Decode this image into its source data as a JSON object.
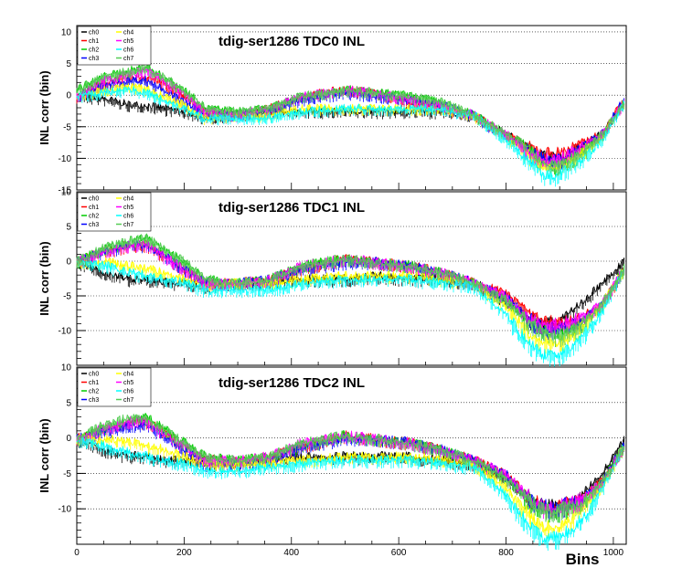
{
  "figure": {
    "xlabel": "Bins",
    "colors": {
      "ch0": "#000000",
      "ch1": "#ff0000",
      "ch2": "#00cc00",
      "ch3": "#0000ff",
      "ch4": "#ffff00",
      "ch5": "#ff00ff",
      "ch6": "#00ffff",
      "ch7": "#55cc55"
    }
  },
  "chart_data": [
    {
      "type": "line",
      "title": "tdig-ser1286 TDC0 INL",
      "ylabel": "INL corr (bin)",
      "xlim": [
        0,
        1024
      ],
      "ylim": [
        -15,
        11
      ],
      "yticks": [
        10,
        5,
        0,
        -5,
        -10,
        -15
      ],
      "xticks": [],
      "legend_position": "top-left",
      "grid": "horizontal dotted",
      "x": [
        0,
        50,
        100,
        130,
        160,
        200,
        240,
        300,
        360,
        420,
        500,
        560,
        620,
        680,
        740,
        800,
        840,
        870,
        900,
        940,
        980,
        1020
      ],
      "series": [
        {
          "name": "ch0",
          "values": [
            0,
            -0.5,
            -1.5,
            -1.5,
            -2,
            -2.5,
            -3.5,
            -3,
            -2.5,
            -2.5,
            -2.5,
            -2.5,
            -2.5,
            -2.5,
            -3,
            -6,
            -8,
            -9.5,
            -10,
            -8,
            -6,
            -1
          ]
        },
        {
          "name": "ch1",
          "values": [
            0,
            2,
            3,
            3,
            2,
            0,
            -2.5,
            -3,
            -2,
            0,
            1,
            0.5,
            -1,
            -2,
            -3,
            -6,
            -8,
            -9,
            -9,
            -7.5,
            -6,
            -0.5
          ]
        },
        {
          "name": "ch2",
          "values": [
            1,
            3,
            4,
            4.5,
            3,
            1,
            -2,
            -2.5,
            -2,
            0,
            1,
            0.5,
            0,
            -1,
            -3,
            -6,
            -8,
            -10.5,
            -11,
            -9,
            -6,
            -1
          ]
        },
        {
          "name": "ch3",
          "values": [
            0,
            1.5,
            2.5,
            2.5,
            1,
            -1,
            -3,
            -3,
            -2.5,
            -0.5,
            0.5,
            0,
            -0.5,
            -1.5,
            -3,
            -6.5,
            -8.5,
            -10,
            -10,
            -8,
            -6,
            -0.5
          ]
        },
        {
          "name": "ch4",
          "values": [
            0,
            1,
            1.5,
            1,
            0,
            -1.5,
            -3.5,
            -3,
            -3,
            -2,
            -2,
            -2,
            -2,
            -2,
            -3,
            -6.5,
            -9,
            -11,
            -11,
            -9,
            -6.5,
            -1
          ]
        },
        {
          "name": "ch5",
          "values": [
            0,
            2.5,
            3.5,
            4,
            2.5,
            0.5,
            -2.5,
            -3,
            -2,
            0,
            1,
            0.5,
            -0.5,
            -1.5,
            -3,
            -6,
            -8.5,
            -10,
            -10,
            -8,
            -6,
            -1
          ]
        },
        {
          "name": "ch6",
          "values": [
            0,
            0.5,
            1,
            0.5,
            -0.5,
            -2,
            -3.5,
            -3.5,
            -3.5,
            -2.5,
            -2,
            -2,
            -2,
            -2,
            -3,
            -7,
            -10,
            -12.5,
            -12.5,
            -10,
            -7,
            -1
          ]
        },
        {
          "name": "ch7",
          "values": [
            1,
            3,
            4,
            4.5,
            3,
            1,
            -2,
            -2.5,
            -2,
            0,
            1,
            0.5,
            0,
            -1,
            -3,
            -6,
            -8,
            -10.5,
            -11,
            -9,
            -6,
            -1
          ]
        }
      ]
    },
    {
      "type": "line",
      "title": "tdig-ser1286 TDC1 INL",
      "ylabel": "INL corr (bin)",
      "xlim": [
        0,
        1024
      ],
      "ylim": [
        -15,
        10
      ],
      "yticks": [
        10,
        5,
        0,
        -5,
        -10
      ],
      "xticks": [],
      "legend_position": "top-left",
      "grid": "horizontal dotted",
      "x": [
        0,
        50,
        100,
        130,
        160,
        200,
        240,
        300,
        360,
        420,
        500,
        560,
        620,
        680,
        740,
        800,
        840,
        870,
        900,
        940,
        980,
        1020
      ],
      "series": [
        {
          "name": "ch0",
          "values": [
            0,
            -1.5,
            -2.5,
            -2.5,
            -3,
            -3,
            -3.5,
            -3,
            -3,
            -2.5,
            -2.5,
            -2,
            -2.5,
            -2.5,
            -3,
            -5.5,
            -8,
            -9,
            -8.5,
            -6,
            -3,
            0
          ]
        },
        {
          "name": "ch1",
          "values": [
            0,
            1.5,
            2.5,
            2.5,
            1,
            -1,
            -3,
            -3,
            -2.5,
            -1,
            0.5,
            0,
            -0.5,
            -1.5,
            -3,
            -4.5,
            -7,
            -8.5,
            -8.5,
            -8,
            -6,
            -1
          ]
        },
        {
          "name": "ch2",
          "values": [
            0,
            2,
            3,
            3.5,
            2,
            0,
            -2.5,
            -3,
            -2.5,
            -0.5,
            0.5,
            0,
            -0.5,
            -1.5,
            -3,
            -5.5,
            -8.5,
            -10,
            -10.5,
            -9,
            -6,
            -1
          ]
        },
        {
          "name": "ch3",
          "values": [
            0,
            1.5,
            2.5,
            2.5,
            1,
            -1,
            -3,
            -3,
            -2.5,
            -1,
            0,
            0,
            -0.5,
            -1.5,
            -3,
            -5,
            -8,
            -9.5,
            -9.5,
            -8.5,
            -6,
            -1
          ]
        },
        {
          "name": "ch4",
          "values": [
            0,
            0,
            -0.5,
            -1,
            -1.5,
            -2.5,
            -3.5,
            -3,
            -3,
            -2.5,
            -2,
            -2,
            -2,
            -2.5,
            -3,
            -6.5,
            -10,
            -11.5,
            -11.5,
            -9.5,
            -6,
            -1
          ]
        },
        {
          "name": "ch5",
          "values": [
            0,
            1.5,
            2.5,
            2.5,
            1,
            -1,
            -3,
            -3,
            -2.5,
            -0.5,
            0.5,
            0,
            -0.5,
            -1.5,
            -3,
            -5,
            -8,
            -9,
            -9,
            -8,
            -6,
            -1
          ]
        },
        {
          "name": "ch6",
          "values": [
            0,
            -0.5,
            -1.5,
            -2,
            -2.5,
            -3,
            -4,
            -4,
            -4,
            -3,
            -2.5,
            -2.5,
            -2.5,
            -3,
            -3.5,
            -7.5,
            -11.5,
            -13.5,
            -13.5,
            -11,
            -7,
            -1
          ]
        },
        {
          "name": "ch7",
          "values": [
            0,
            2,
            3,
            3.5,
            2,
            0,
            -2.5,
            -3,
            -2.5,
            -0.5,
            0.5,
            0,
            -0.5,
            -1.5,
            -3,
            -5.5,
            -8.5,
            -10,
            -10.5,
            -9,
            -6,
            -1
          ]
        }
      ]
    },
    {
      "type": "line",
      "title": "tdig-ser1286 TDC2 INL",
      "ylabel": "INL corr (bin)",
      "xlim": [
        0,
        1024
      ],
      "ylim": [
        -15,
        10
      ],
      "yticks": [
        10,
        5,
        0,
        -5,
        -10
      ],
      "xticks": [
        0,
        200,
        400,
        600,
        800,
        1000
      ],
      "legend_position": "top-left",
      "grid": "horizontal dotted",
      "x": [
        0,
        50,
        100,
        130,
        160,
        200,
        240,
        300,
        360,
        420,
        500,
        560,
        620,
        680,
        740,
        800,
        840,
        870,
        900,
        940,
        980,
        1020
      ],
      "series": [
        {
          "name": "ch0",
          "values": [
            0,
            -1.5,
            -2.5,
            -2.5,
            -3,
            -3,
            -3.5,
            -3.5,
            -3,
            -2.5,
            -2.5,
            -2.5,
            -2.5,
            -3,
            -3.5,
            -5.5,
            -8,
            -9.5,
            -9.5,
            -8,
            -5,
            0
          ]
        },
        {
          "name": "ch1",
          "values": [
            0,
            1.5,
            2.5,
            2.5,
            1,
            -1,
            -3,
            -3,
            -2.5,
            -1,
            0.5,
            0,
            -0.5,
            -1.5,
            -3,
            -5,
            -8,
            -9.5,
            -9.5,
            -8.5,
            -6,
            -1
          ]
        },
        {
          "name": "ch2",
          "values": [
            0,
            1.5,
            2.5,
            3,
            1.5,
            -0.5,
            -2.5,
            -3,
            -2.5,
            -1,
            0.5,
            0,
            -0.5,
            -1.5,
            -3,
            -5.5,
            -8.5,
            -10,
            -10,
            -9,
            -6,
            -1
          ]
        },
        {
          "name": "ch3",
          "values": [
            0,
            1,
            2,
            2,
            0.5,
            -1.5,
            -3.5,
            -3.5,
            -3,
            -1,
            0,
            0,
            -0.5,
            -1.5,
            -3,
            -5,
            -8,
            -9.5,
            -9.5,
            -8.5,
            -6,
            -1
          ]
        },
        {
          "name": "ch4",
          "values": [
            0,
            0,
            -0.5,
            -1,
            -1.5,
            -2.5,
            -3.5,
            -3.5,
            -3.5,
            -3,
            -2.5,
            -2.5,
            -2.5,
            -3,
            -3.5,
            -7,
            -10.5,
            -12.5,
            -12.5,
            -10,
            -6.5,
            -1
          ]
        },
        {
          "name": "ch5",
          "values": [
            0,
            1.5,
            2.5,
            2.5,
            1,
            -1,
            -3,
            -3,
            -2.5,
            -0.5,
            0.5,
            0,
            -0.5,
            -1.5,
            -3,
            -5,
            -8,
            -9.5,
            -9.5,
            -8.5,
            -6,
            -1
          ]
        },
        {
          "name": "ch6",
          "values": [
            0,
            -1,
            -2,
            -2.5,
            -3,
            -3.5,
            -4.5,
            -4.5,
            -4,
            -3.5,
            -3,
            -3,
            -3,
            -3.5,
            -4,
            -8,
            -12,
            -14,
            -14,
            -11.5,
            -7,
            -1
          ]
        },
        {
          "name": "ch7",
          "values": [
            0,
            2,
            3,
            3,
            1.5,
            -0.5,
            -2.5,
            -3,
            -2.5,
            -0.5,
            0.5,
            0,
            -0.5,
            -1.5,
            -3,
            -5.5,
            -8.5,
            -10,
            -10,
            -9,
            -6,
            -1
          ]
        }
      ]
    }
  ]
}
